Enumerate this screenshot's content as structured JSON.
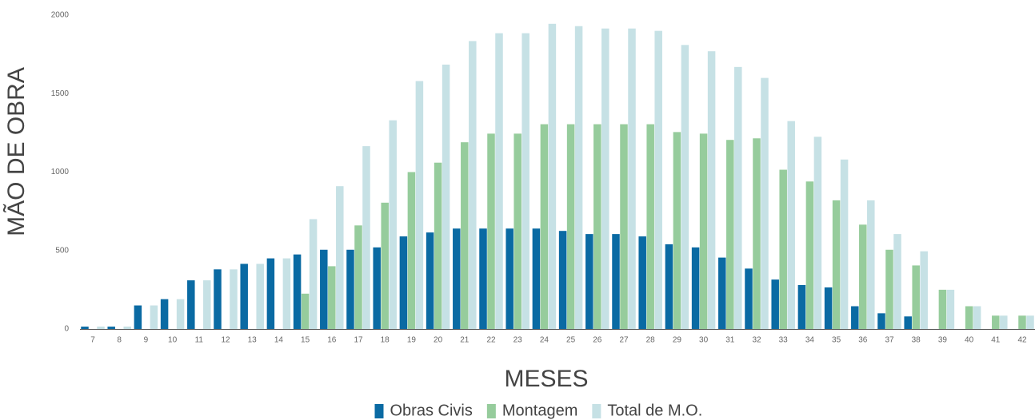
{
  "chart_data": {
    "type": "bar",
    "x_label": "MESES",
    "y_label": "MÃO DE OBRA",
    "categories": [
      "7",
      "8",
      "9",
      "10",
      "11",
      "12",
      "13",
      "14",
      "15",
      "16",
      "17",
      "18",
      "19",
      "20",
      "21",
      "22",
      "23",
      "24",
      "25",
      "26",
      "27",
      "28",
      "29",
      "30",
      "31",
      "32",
      "33",
      "34",
      "35",
      "36",
      "37",
      "38",
      "39",
      "40",
      "41",
      "42"
    ],
    "series": [
      {
        "name": "Obras Civis",
        "color": "#0a6aa3",
        "values": [
          15,
          15,
          150,
          190,
          310,
          380,
          415,
          450,
          475,
          505,
          505,
          520,
          590,
          615,
          640,
          640,
          640,
          640,
          625,
          605,
          605,
          590,
          540,
          520,
          455,
          385,
          315,
          280,
          265,
          145,
          100,
          80,
          0,
          0,
          0,
          0
        ]
      },
      {
        "name": "Montagem",
        "color": "#96cc9c",
        "values": [
          0,
          0,
          0,
          0,
          0,
          0,
          0,
          0,
          225,
          400,
          660,
          805,
          1000,
          1060,
          1190,
          1245,
          1245,
          1305,
          1305,
          1305,
          1305,
          1305,
          1255,
          1245,
          1205,
          1215,
          1015,
          940,
          820,
          665,
          505,
          405,
          250,
          145,
          85,
          85
        ]
      },
      {
        "name": "Total de M.O.",
        "color": "#c6e1e5",
        "values": [
          15,
          15,
          150,
          190,
          310,
          380,
          415,
          450,
          700,
          910,
          1165,
          1330,
          1580,
          1685,
          1835,
          1885,
          1885,
          1945,
          1930,
          1915,
          1915,
          1900,
          1810,
          1770,
          1670,
          1600,
          1325,
          1225,
          1080,
          820,
          605,
          495,
          250,
          145,
          85,
          85
        ]
      }
    ],
    "ylim": [
      0,
      2000
    ],
    "yticks": [
      0,
      500,
      1000,
      1500,
      2000
    ],
    "grid": false,
    "legend": "bottom"
  }
}
